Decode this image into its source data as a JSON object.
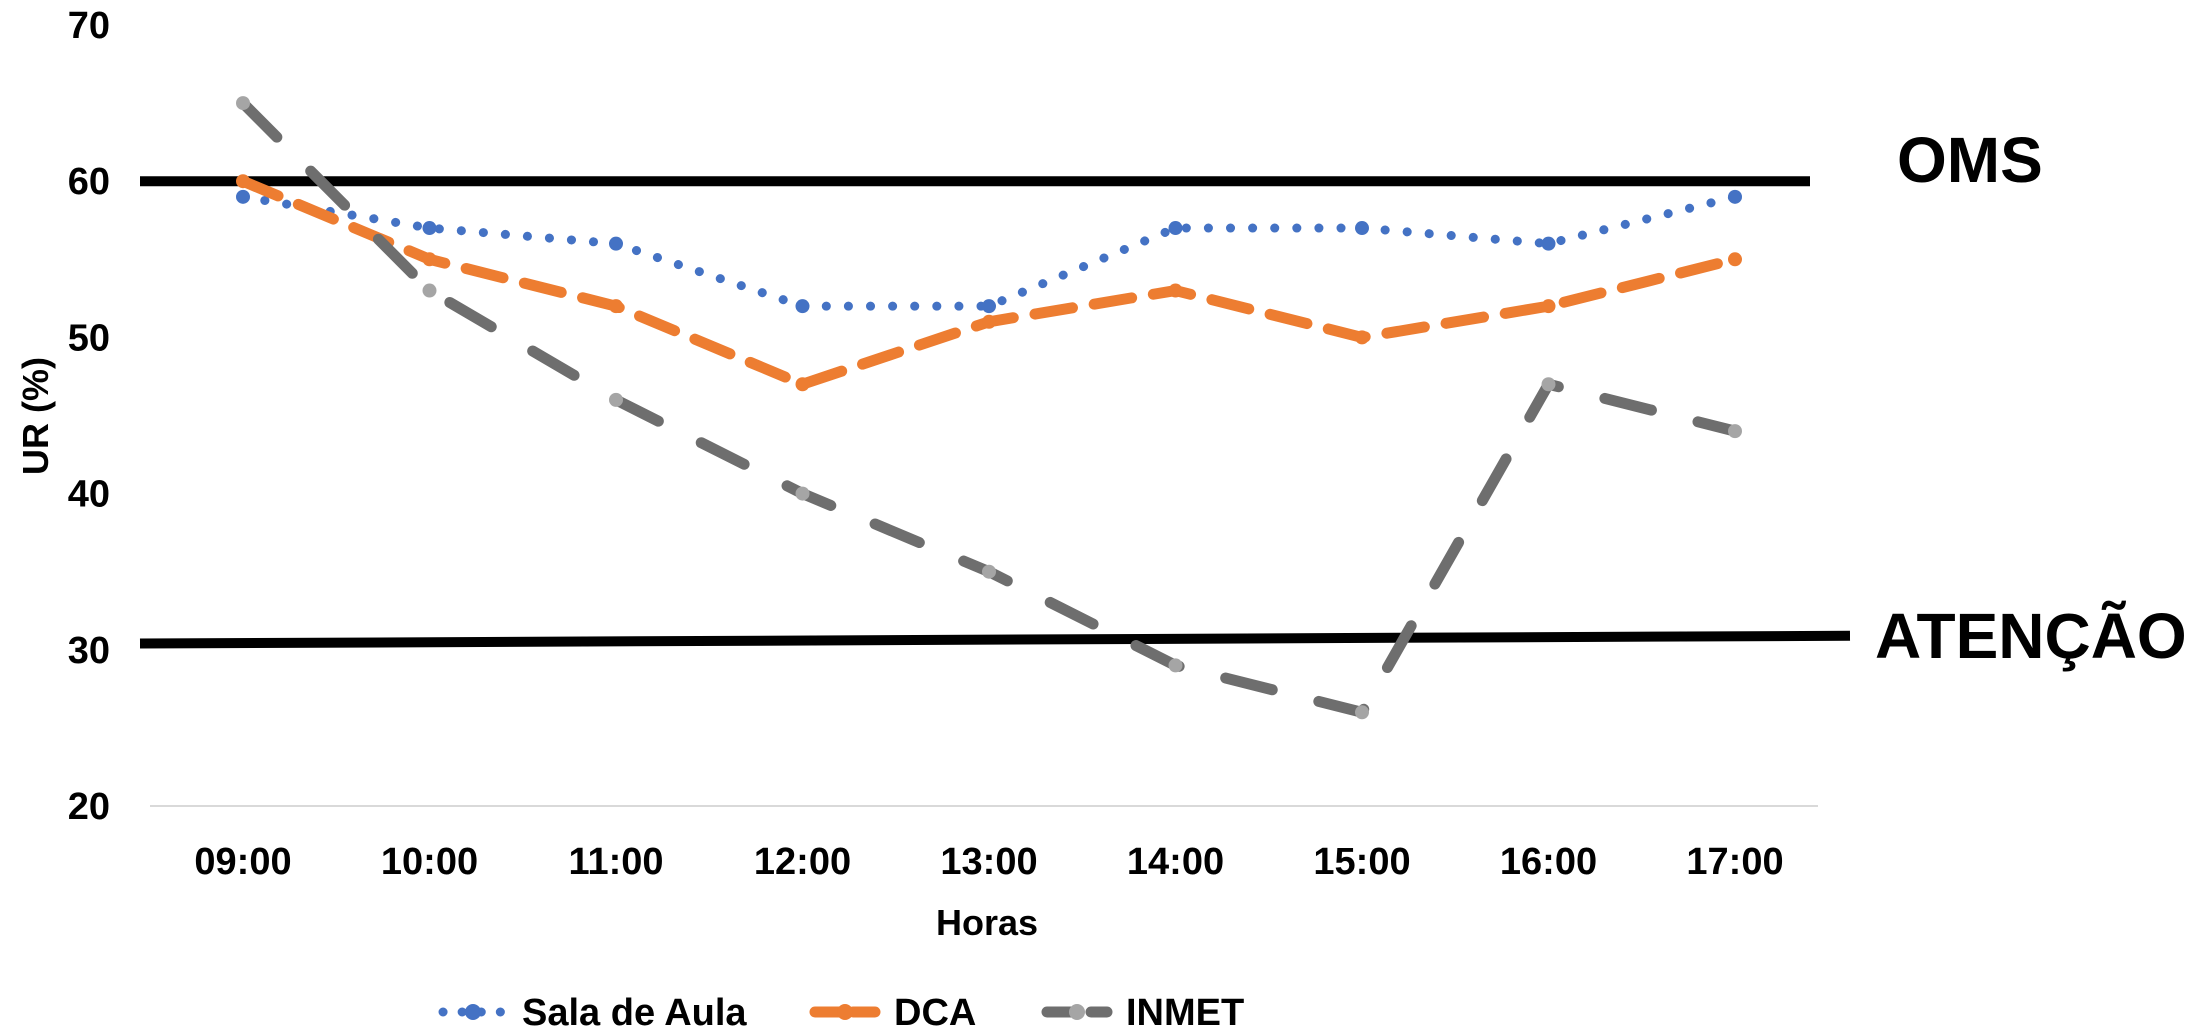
{
  "chart_data": {
    "type": "line",
    "title": "",
    "xlabel": "Horas",
    "ylabel": "UR (%)",
    "categories": [
      "09:00",
      "10:00",
      "11:00",
      "12:00",
      "13:00",
      "14:00",
      "15:00",
      "16:00",
      "17:00"
    ],
    "ylim": [
      20,
      70
    ],
    "yticks": [
      20,
      30,
      40,
      50,
      60,
      70
    ],
    "grid": false,
    "legend": "bottom",
    "series": [
      {
        "name": "Sala de Aula",
        "color": "#4472C4",
        "style": "dotted",
        "values": [
          59,
          57,
          56,
          52,
          52,
          57,
          57,
          56,
          59
        ]
      },
      {
        "name": "DCA",
        "color": "#ED7D31",
        "style": "dashed",
        "values": [
          60,
          55,
          52,
          47,
          51,
          53,
          50,
          52,
          55
        ]
      },
      {
        "name": "INMET",
        "color": "#6E6E6E",
        "marker_color": "#A5A5A5",
        "style": "long-dashed",
        "values": [
          65,
          53,
          46,
          40,
          35,
          29,
          26,
          47,
          44
        ]
      }
    ],
    "reference_lines": [
      {
        "label": "OMS",
        "value_start": 60,
        "value_end": 60
      },
      {
        "label": "ATENÇÃO",
        "value_start": 30.4,
        "value_end": 30.9
      }
    ]
  }
}
